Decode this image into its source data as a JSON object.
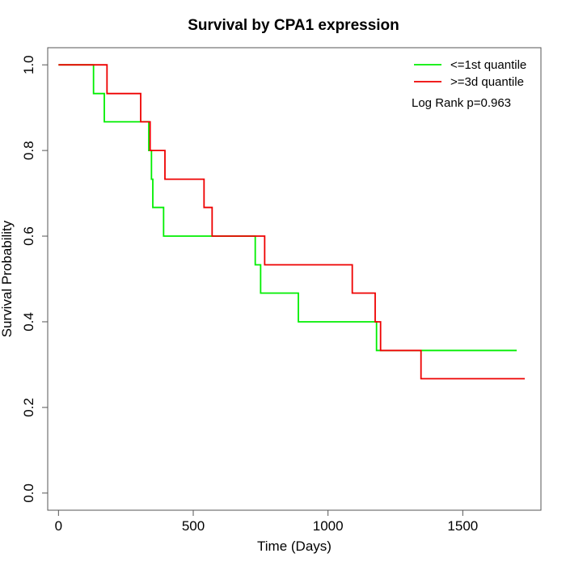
{
  "chart_data": {
    "type": "line",
    "step": true,
    "title": "Survival by CPA1 expression",
    "xlabel": "Time (Days)",
    "ylabel": "Survival Probability",
    "xlim": [
      -40,
      1790
    ],
    "ylim": [
      -0.04,
      1.04
    ],
    "xticks": [
      0,
      500,
      1000,
      1500
    ],
    "yticks": [
      0.0,
      0.2,
      0.4,
      0.6,
      0.8,
      1.0
    ],
    "xtick_labels": [
      "0",
      "500",
      "1000",
      "1500"
    ],
    "ytick_labels": [
      "0.0",
      "0.2",
      "0.4",
      "0.6",
      "0.8",
      "1.0"
    ],
    "grid": false,
    "legend_position": "top-right",
    "annotation": "Log Rank p=0.963",
    "series": [
      {
        "name": "<=1st quantile",
        "color": "#00ee00",
        "x": [
          0,
          130,
          170,
          335,
          345,
          350,
          390,
          730,
          750,
          890,
          1180,
          1700
        ],
        "y": [
          1.0,
          0.933,
          0.867,
          0.8,
          0.733,
          0.667,
          0.6,
          0.533,
          0.467,
          0.4,
          0.333,
          0.333
        ]
      },
      {
        "name": ">=3d quantile",
        "color": "#ee0000",
        "x": [
          0,
          180,
          305,
          340,
          395,
          540,
          570,
          765,
          1090,
          1175,
          1195,
          1345,
          1730
        ],
        "y": [
          1.0,
          0.933,
          0.867,
          0.8,
          0.733,
          0.667,
          0.6,
          0.533,
          0.467,
          0.4,
          0.333,
          0.267,
          0.267
        ]
      }
    ]
  }
}
